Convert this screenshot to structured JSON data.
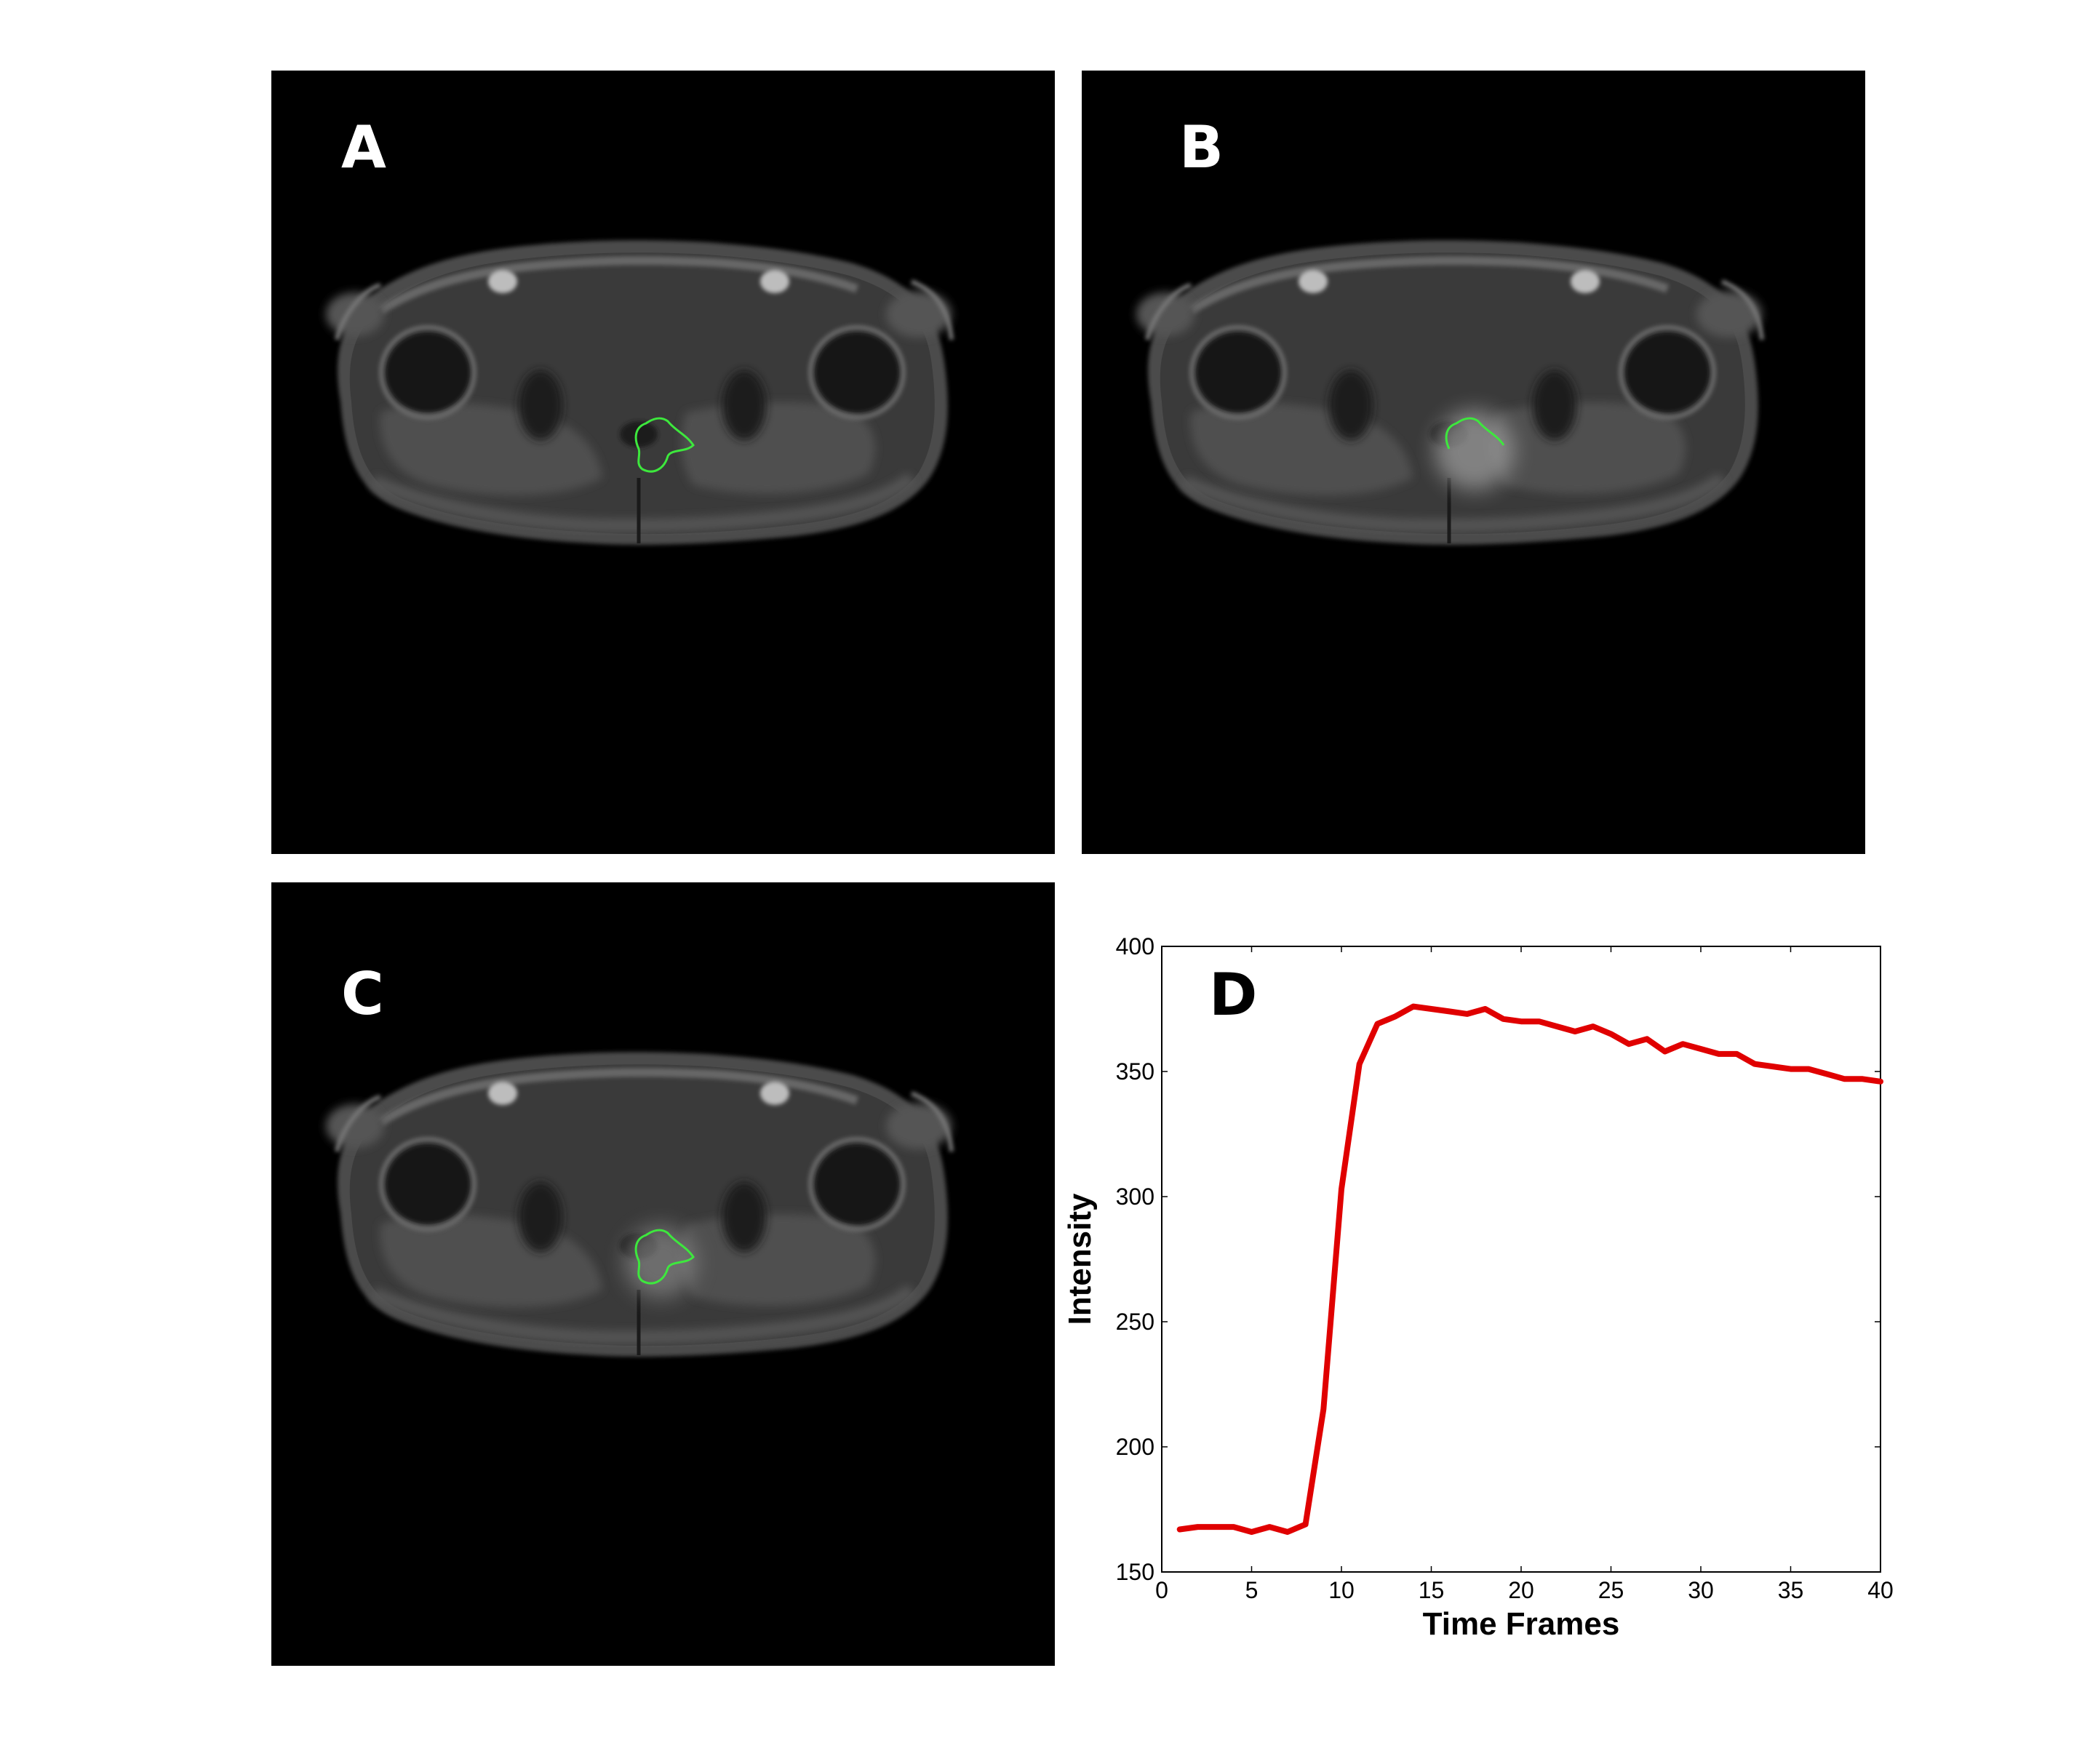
{
  "panels": {
    "a": {
      "label": "A"
    },
    "b": {
      "label": "B"
    },
    "c": {
      "label": "C"
    },
    "d": {
      "label": "D"
    }
  },
  "colors": {
    "contour": "#3de83d",
    "curve": "#e00000",
    "axis": "#000000"
  },
  "chart_data": {
    "type": "line",
    "xlabel": "Time Frames",
    "ylabel": "Intensity",
    "xlim": [
      0,
      40
    ],
    "ylim": [
      150,
      400
    ],
    "xticks": [
      0,
      5,
      10,
      15,
      20,
      25,
      30,
      35,
      40
    ],
    "yticks": [
      150,
      200,
      250,
      300,
      350,
      400
    ],
    "grid": false,
    "series": [
      {
        "x": [
          1,
          2,
          3,
          4,
          5,
          6,
          7,
          8,
          9,
          10,
          11,
          12,
          13,
          14,
          15,
          16,
          17,
          18,
          19,
          20,
          21,
          22,
          23,
          24,
          25,
          26,
          27,
          28,
          29,
          30,
          31,
          32,
          33,
          34,
          35,
          36,
          37,
          38,
          39,
          40
        ],
        "values": [
          167,
          168,
          168,
          168,
          166,
          168,
          166,
          169,
          215,
          303,
          353,
          369,
          372,
          376,
          375,
          374,
          373,
          375,
          371,
          370,
          370,
          368,
          366,
          368,
          365,
          361,
          363,
          358,
          361,
          359,
          357,
          357,
          353,
          352,
          351,
          351,
          349,
          347,
          347,
          346
        ]
      }
    ]
  }
}
